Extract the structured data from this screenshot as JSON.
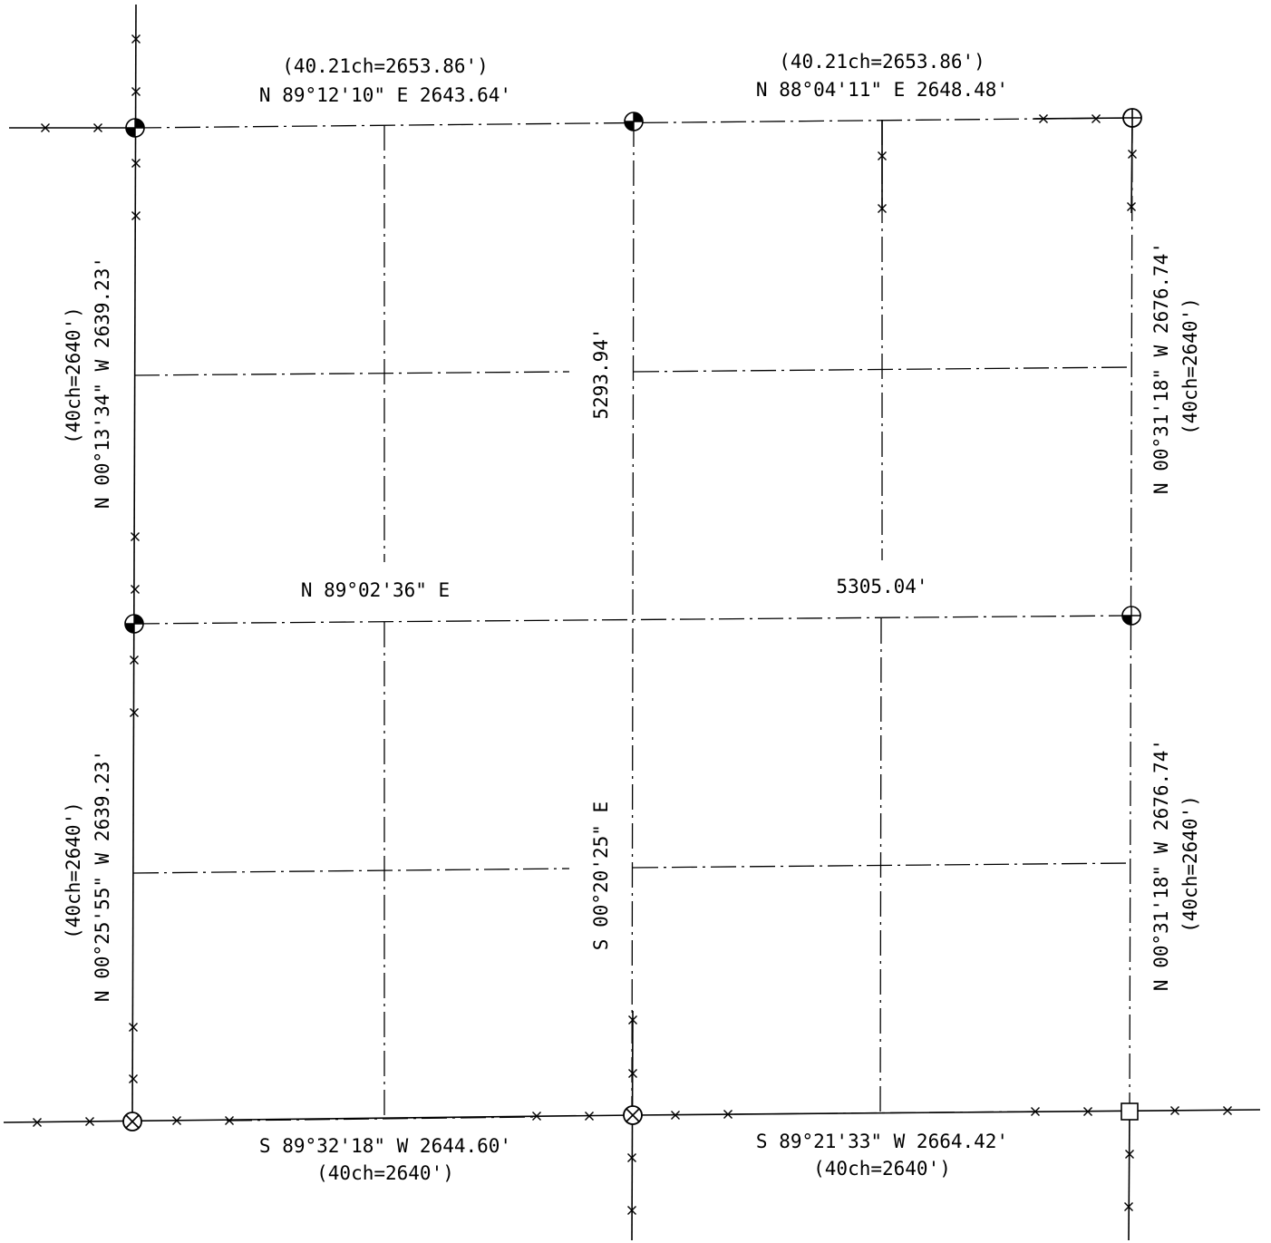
{
  "sheet": {
    "north_labels": {
      "left_record": "(40.21ch=2653.86')",
      "left_bearing": "N 89°12'10\" E 2643.64'",
      "right_record": "(40.21ch=2653.86')",
      "right_bearing": "N 88°04'11\" E 2648.48'"
    },
    "west_labels": {
      "upper_record": "(40ch=2640')",
      "upper_bearing": "N 00°13'34\" W 2639.23'",
      "lower_record": "(40ch=2640')",
      "lower_bearing": "N 00°25'55\" W 2639.23'"
    },
    "east_labels": {
      "upper_bearing": "N 00°31'18\" W 2676.74'",
      "upper_record": "(40ch=2640')",
      "lower_bearing": "N 00°31'18\" W 2676.74'",
      "lower_record": "(40ch=2640')"
    },
    "center_labels": {
      "ns_distance": "5293.94'",
      "ns_bearing": "S 00°20'25\" E",
      "ew_bearing": "N 89°02'36\" E",
      "ew_distance": "5305.04'"
    },
    "south_labels": {
      "left_bearing": "S 89°32'18\" W 2644.60'",
      "left_record": "(40ch=2640')",
      "right_bearing": "S 89°21'33\" W 2664.42'",
      "right_record": "(40ch=2640')"
    }
  }
}
